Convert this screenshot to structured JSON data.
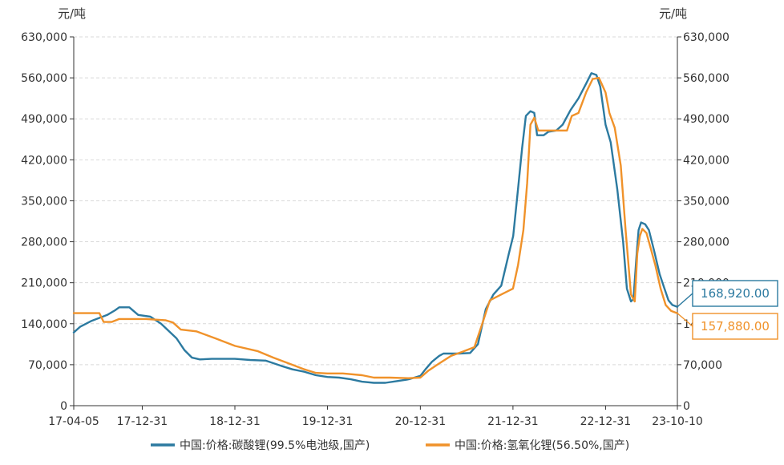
{
  "chart_data": {
    "type": "line",
    "y_unit_left": "元/吨",
    "y_unit_right": "元/吨",
    "ylim": [
      0,
      630000
    ],
    "y_ticks": [
      0,
      70000,
      140000,
      210000,
      280000,
      350000,
      420000,
      490000,
      560000,
      630000
    ],
    "y_tick_labels": [
      "0",
      "70,000",
      "140,000",
      "210,000",
      "280,000",
      "350,000",
      "420,000",
      "490,000",
      "560,000",
      "630,000"
    ],
    "x_range": [
      "2017-04-05",
      "2023-10-10"
    ],
    "x_ticks": [
      "2017-04-05",
      "2017-12-31",
      "2018-12-31",
      "2019-12-31",
      "2020-12-31",
      "2021-12-31",
      "2022-12-31",
      "2023-10-10"
    ],
    "x_tick_labels": [
      "17-04-05",
      "17-12-31",
      "18-12-31",
      "19-12-31",
      "20-12-31",
      "21-12-31",
      "22-12-31",
      "23-10-10"
    ],
    "grid": true,
    "legend_position": "bottom",
    "series": [
      {
        "name": "中国:价格:碳酸锂(99.5%电池级,国产)",
        "color": "#2c7aa0",
        "last_value_label": "168,920.00",
        "points": [
          [
            "2017-04-05",
            125000
          ],
          [
            "2017-05-01",
            135000
          ],
          [
            "2017-06-15",
            145000
          ],
          [
            "2017-08-15",
            155000
          ],
          [
            "2017-09-15",
            163000
          ],
          [
            "2017-10-01",
            168000
          ],
          [
            "2017-11-10",
            168000
          ],
          [
            "2017-12-15",
            155000
          ],
          [
            "2018-02-01",
            152000
          ],
          [
            "2018-03-15",
            140000
          ],
          [
            "2018-05-15",
            115000
          ],
          [
            "2018-06-15",
            95000
          ],
          [
            "2018-07-15",
            82000
          ],
          [
            "2018-08-15",
            79000
          ],
          [
            "2018-10-01",
            80000
          ],
          [
            "2018-12-31",
            80000
          ],
          [
            "2019-03-01",
            78000
          ],
          [
            "2019-05-01",
            77000
          ],
          [
            "2019-07-01",
            68000
          ],
          [
            "2019-08-15",
            62000
          ],
          [
            "2019-10-01",
            58000
          ],
          [
            "2019-11-15",
            52000
          ],
          [
            "2019-12-31",
            49000
          ],
          [
            "2020-02-15",
            48000
          ],
          [
            "2020-04-01",
            45000
          ],
          [
            "2020-05-15",
            41000
          ],
          [
            "2020-07-01",
            39000
          ],
          [
            "2020-08-15",
            39000
          ],
          [
            "2020-10-01",
            42000
          ],
          [
            "2020-11-15",
            45000
          ],
          [
            "2020-12-31",
            51000
          ],
          [
            "2021-01-20",
            62000
          ],
          [
            "2021-02-15",
            75000
          ],
          [
            "2021-03-15",
            85000
          ],
          [
            "2021-04-01",
            89000
          ],
          [
            "2021-06-01",
            89000
          ],
          [
            "2021-07-15",
            90000
          ],
          [
            "2021-08-15",
            105000
          ],
          [
            "2021-09-15",
            165000
          ],
          [
            "2021-10-15",
            190000
          ],
          [
            "2021-11-15",
            205000
          ],
          [
            "2021-12-15",
            260000
          ],
          [
            "2022-01-01",
            290000
          ],
          [
            "2022-01-20",
            370000
          ],
          [
            "2022-02-05",
            440000
          ],
          [
            "2022-02-20",
            495000
          ],
          [
            "2022-03-10",
            503000
          ],
          [
            "2022-03-25",
            500000
          ],
          [
            "2022-04-05",
            462000
          ],
          [
            "2022-05-01",
            462000
          ],
          [
            "2022-05-20",
            468000
          ],
          [
            "2022-06-20",
            470000
          ],
          [
            "2022-07-15",
            480000
          ],
          [
            "2022-08-15",
            505000
          ],
          [
            "2022-09-15",
            525000
          ],
          [
            "2022-10-15",
            550000
          ],
          [
            "2022-11-05",
            568000
          ],
          [
            "2022-11-25",
            565000
          ],
          [
            "2022-12-10",
            545000
          ],
          [
            "2022-12-31",
            480000
          ],
          [
            "2023-01-20",
            450000
          ],
          [
            "2023-02-15",
            370000
          ],
          [
            "2023-03-10",
            280000
          ],
          [
            "2023-03-25",
            200000
          ],
          [
            "2023-04-10",
            178000
          ],
          [
            "2023-04-20",
            182000
          ],
          [
            "2023-05-01",
            250000
          ],
          [
            "2023-05-10",
            300000
          ],
          [
            "2023-05-20",
            313000
          ],
          [
            "2023-06-05",
            310000
          ],
          [
            "2023-06-20",
            300000
          ],
          [
            "2023-07-10",
            265000
          ],
          [
            "2023-08-01",
            225000
          ],
          [
            "2023-08-20",
            200000
          ],
          [
            "2023-09-05",
            180000
          ],
          [
            "2023-09-20",
            172000
          ],
          [
            "2023-10-10",
            168920
          ]
        ]
      },
      {
        "name": "中国:价格:氢氧化锂(56.50%,国产)",
        "color": "#f0922a",
        "last_value_label": "157,880.00",
        "points": [
          [
            "2017-04-05",
            158000
          ],
          [
            "2017-07-15",
            158000
          ],
          [
            "2017-08-01",
            143000
          ],
          [
            "2017-09-01",
            143000
          ],
          [
            "2017-10-01",
            148000
          ],
          [
            "2018-01-15",
            148000
          ],
          [
            "2018-04-01",
            146000
          ],
          [
            "2018-05-01",
            142000
          ],
          [
            "2018-06-01",
            130000
          ],
          [
            "2018-08-01",
            127000
          ],
          [
            "2018-10-15",
            115000
          ],
          [
            "2019-01-01",
            102000
          ],
          [
            "2019-04-01",
            93000
          ],
          [
            "2019-06-01",
            82000
          ],
          [
            "2019-08-01",
            72000
          ],
          [
            "2019-10-01",
            62000
          ],
          [
            "2019-11-15",
            56000
          ],
          [
            "2019-12-31",
            55000
          ],
          [
            "2020-03-01",
            55000
          ],
          [
            "2020-05-15",
            52000
          ],
          [
            "2020-07-01",
            48000
          ],
          [
            "2020-09-01",
            48000
          ],
          [
            "2020-11-15",
            47000
          ],
          [
            "2020-12-31",
            48000
          ],
          [
            "2021-02-01",
            60000
          ],
          [
            "2021-03-15",
            72000
          ],
          [
            "2021-05-01",
            85000
          ],
          [
            "2021-06-15",
            92000
          ],
          [
            "2021-08-01",
            100000
          ],
          [
            "2021-09-01",
            140000
          ],
          [
            "2021-10-01",
            180000
          ],
          [
            "2021-11-15",
            190000
          ],
          [
            "2021-12-31",
            200000
          ],
          [
            "2022-01-20",
            240000
          ],
          [
            "2022-02-10",
            300000
          ],
          [
            "2022-02-25",
            380000
          ],
          [
            "2022-03-10",
            480000
          ],
          [
            "2022-03-25",
            492000
          ],
          [
            "2022-04-10",
            470000
          ],
          [
            "2022-06-15",
            470000
          ],
          [
            "2022-08-01",
            470000
          ],
          [
            "2022-08-20",
            495000
          ],
          [
            "2022-09-15",
            500000
          ],
          [
            "2022-10-15",
            535000
          ],
          [
            "2022-11-10",
            558000
          ],
          [
            "2022-12-05",
            560000
          ],
          [
            "2022-12-31",
            535000
          ],
          [
            "2023-01-15",
            500000
          ],
          [
            "2023-02-05",
            475000
          ],
          [
            "2023-03-01",
            410000
          ],
          [
            "2023-03-20",
            300000
          ],
          [
            "2023-04-10",
            190000
          ],
          [
            "2023-04-25",
            178000
          ],
          [
            "2023-05-05",
            260000
          ],
          [
            "2023-05-15",
            290000
          ],
          [
            "2023-05-25",
            302000
          ],
          [
            "2023-06-10",
            295000
          ],
          [
            "2023-06-25",
            272000
          ],
          [
            "2023-07-15",
            240000
          ],
          [
            "2023-08-05",
            200000
          ],
          [
            "2023-08-25",
            172000
          ],
          [
            "2023-09-15",
            162000
          ],
          [
            "2023-10-10",
            157880
          ]
        ]
      }
    ]
  }
}
